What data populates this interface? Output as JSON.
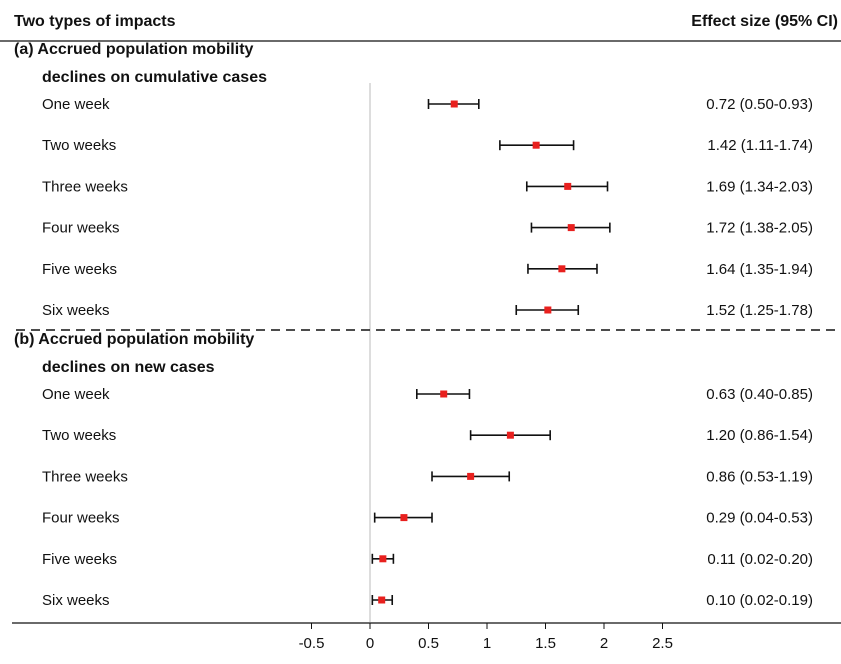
{
  "header": {
    "left": "Two types of impacts",
    "right": "Effect size (95% CI)"
  },
  "chart_data": {
    "type": "forest",
    "x_ticks": [
      "-0.5",
      "0",
      "0.5",
      "1",
      "1.5",
      "2",
      "2.5"
    ],
    "xlim": [
      -0.5,
      2.5
    ],
    "reference_line": 0,
    "sections": [
      {
        "title_line1": "(a) Accrued population mobility",
        "title_line2": "declines on cumulative cases",
        "rows": [
          {
            "label": "One week",
            "est": 0.72,
            "lo": 0.5,
            "hi": 0.93,
            "text": "0.72 (0.50-0.93)"
          },
          {
            "label": "Two weeks",
            "est": 1.42,
            "lo": 1.11,
            "hi": 1.74,
            "text": "1.42 (1.11-1.74)"
          },
          {
            "label": "Three weeks",
            "est": 1.69,
            "lo": 1.34,
            "hi": 2.03,
            "text": "1.69 (1.34-2.03)"
          },
          {
            "label": "Four weeks",
            "est": 1.72,
            "lo": 1.38,
            "hi": 2.05,
            "text": "1.72 (1.38-2.05)"
          },
          {
            "label": "Five weeks",
            "est": 1.64,
            "lo": 1.35,
            "hi": 1.94,
            "text": "1.64 (1.35-1.94)"
          },
          {
            "label": "Six weeks",
            "est": 1.52,
            "lo": 1.25,
            "hi": 1.78,
            "text": "1.52 (1.25-1.78)"
          }
        ]
      },
      {
        "title_line1": "(b) Accrued population mobility",
        "title_line2": "declines on new cases",
        "rows": [
          {
            "label": "One week",
            "est": 0.63,
            "lo": 0.4,
            "hi": 0.85,
            "text": "0.63 (0.40-0.85)"
          },
          {
            "label": "Two weeks",
            "est": 1.2,
            "lo": 0.86,
            "hi": 1.54,
            "text": "1.20 (0.86-1.54)"
          },
          {
            "label": "Three weeks",
            "est": 0.86,
            "lo": 0.53,
            "hi": 1.19,
            "text": "0.86 (0.53-1.19)"
          },
          {
            "label": "Four weeks",
            "est": 0.29,
            "lo": 0.04,
            "hi": 0.53,
            "text": "0.29 (0.04-0.53)"
          },
          {
            "label": "Five weeks",
            "est": 0.11,
            "lo": 0.02,
            "hi": 0.2,
            "text": "0.11 (0.02-0.20)"
          },
          {
            "label": "Six weeks",
            "est": 0.1,
            "lo": 0.02,
            "hi": 0.19,
            "text": "0.10 (0.02-0.19)"
          }
        ]
      }
    ],
    "colors": {
      "point": "#e8201e",
      "ci": "#111111",
      "reference": "#bbbbbb",
      "rule": "#111111"
    }
  }
}
